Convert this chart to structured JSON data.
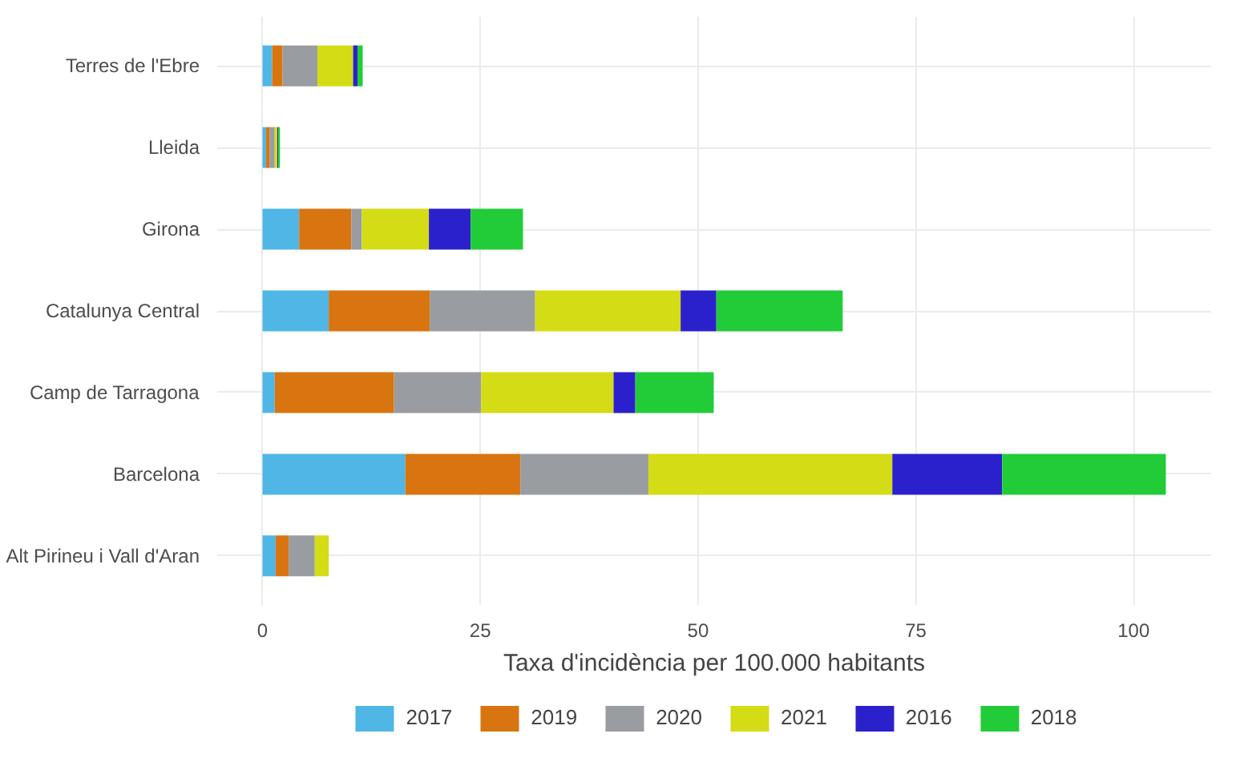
{
  "chart_data": {
    "type": "bar",
    "orientation": "horizontal",
    "stacked": true,
    "categories": [
      "Terres de l'Ebre",
      "Lleida",
      "Girona",
      "Catalunya Central",
      "Camp de Tarragona",
      "Barcelona",
      "Alt Pirineu i Vall d'Aran"
    ],
    "xlabel": "Taxa d'incidència per 100.000 habitants",
    "xlim": [
      -5.2,
      108.9
    ],
    "xticks": [
      0,
      25,
      50,
      75,
      100
    ],
    "grid": true,
    "legend": "bottom",
    "series": [
      {
        "name": "2017",
        "color": "#4fb6e5",
        "values": [
          1.1,
          0.4,
          4.2,
          7.6,
          1.4,
          16.4,
          1.5
        ]
      },
      {
        "name": "2019",
        "color": "#d87511",
        "values": [
          1.2,
          0.4,
          6.0,
          11.6,
          13.7,
          13.2,
          1.5
        ]
      },
      {
        "name": "2020",
        "color": "#999ca0",
        "values": [
          4.0,
          0.6,
          1.2,
          12.1,
          10.0,
          14.7,
          3.0
        ]
      },
      {
        "name": "2021",
        "color": "#d4dc15",
        "values": [
          4.1,
          0.3,
          7.7,
          16.7,
          15.2,
          28.0,
          1.6
        ]
      },
      {
        "name": "2016",
        "color": "#2b21cc",
        "values": [
          0.5,
          0.1,
          4.8,
          4.1,
          2.5,
          12.6,
          0
        ]
      },
      {
        "name": "2018",
        "color": "#22cc39",
        "values": [
          0.6,
          0.2,
          6.0,
          14.5,
          9.0,
          18.8,
          0
        ]
      }
    ]
  }
}
